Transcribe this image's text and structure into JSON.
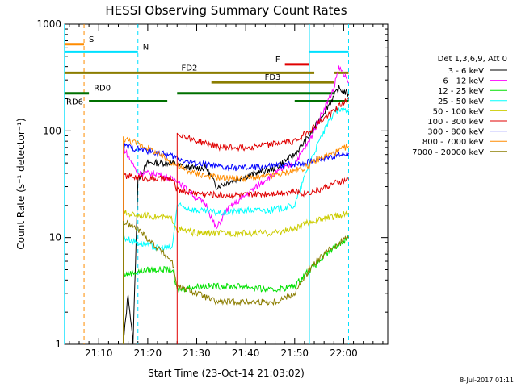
{
  "chart_data": {
    "type": "line",
    "title": "HESSI Observing Summary Count Rates",
    "xlabel": "Start Time (23-Oct-14 21:03:02)",
    "ylabel": "Count Rate (s⁻¹ detector⁻¹)",
    "yscale": "log",
    "ylim": [
      1,
      1000
    ],
    "xlim": [
      "21:03:02",
      "22:09:00"
    ],
    "x_ticks": [
      "21:10",
      "21:20",
      "21:30",
      "21:40",
      "21:50",
      "22:00"
    ],
    "y_ticks": [
      "1",
      "10",
      "100",
      "1000"
    ],
    "legend": {
      "position": "right",
      "title": "Det 1,3,6,9, Att 0"
    },
    "footer_date": "8-Jul-2017 01:11",
    "flags": [
      {
        "label": "S",
        "color": "#ff8c00",
        "t_start": "21:03",
        "t_end": "21:07",
        "level": 650
      },
      {
        "label": "N",
        "color": "#00e0ff",
        "t_start": "21:03",
        "t_end": "21:18",
        "level": 550
      },
      {
        "label": "",
        "color": "#00e0ff",
        "t_start": "21:53",
        "t_end": "22:01",
        "level": 550
      },
      {
        "label": "F",
        "color": "#e00000",
        "t_start": "21:48",
        "t_end": "21:53",
        "level": 420
      },
      {
        "label": "FD2",
        "color": "#8b7d00",
        "t_start": "21:03",
        "t_end": "21:54",
        "level": 350
      },
      {
        "label": "",
        "color": "#8b7d00",
        "t_start": "21:58",
        "t_end": "22:01",
        "level": 350
      },
      {
        "label": "FD3",
        "color": "#8b7d00",
        "t_start": "21:33",
        "t_end": "21:58",
        "level": 285
      },
      {
        "label": "RD0",
        "color": "#007000",
        "t_start": "21:03",
        "t_end": "21:08",
        "level": 225
      },
      {
        "label": "",
        "color": "#007000",
        "t_start": "21:26",
        "t_end": "21:58",
        "level": 225
      },
      {
        "label": "RD6",
        "color": "#007000",
        "t_start": "21:08",
        "t_end": "21:24",
        "level": 190
      },
      {
        "label": "",
        "color": "#007000",
        "t_start": "21:50",
        "t_end": "22:01",
        "level": 190
      }
    ],
    "vlines": [
      {
        "time": "21:03",
        "color": "#00e0ff"
      },
      {
        "time": "21:07",
        "color": "#ff8c00",
        "dashed": true
      },
      {
        "time": "21:18",
        "color": "#00e0ff",
        "dashed": true
      },
      {
        "time": "21:53",
        "color": "#00e0ff"
      },
      {
        "time": "22:01",
        "color": "#00e0ff",
        "dashed": true
      }
    ],
    "series": [
      {
        "name": "3 - 6 keV",
        "color": "#000000",
        "points": [
          [
            "21:15",
            1
          ],
          [
            "21:16",
            3
          ],
          [
            "21:17",
            1
          ],
          [
            "21:18",
            35
          ],
          [
            "21:20",
            50
          ],
          [
            "21:25",
            50
          ],
          [
            "21:28",
            45
          ],
          [
            "21:32",
            45
          ],
          [
            "21:34",
            30
          ],
          [
            "21:38",
            35
          ],
          [
            "21:42",
            40
          ],
          [
            "21:46",
            45
          ],
          [
            "21:50",
            60
          ],
          [
            "21:53",
            90
          ],
          [
            "21:56",
            150
          ],
          [
            "21:59",
            250
          ],
          [
            "22:01",
            220
          ]
        ]
      },
      {
        "name": "6 - 12 keV",
        "color": "#ff00ff",
        "points": [
          [
            "21:15",
            70
          ],
          [
            "21:18",
            40
          ],
          [
            "21:22",
            40
          ],
          [
            "21:25",
            35
          ],
          [
            "21:26",
            35
          ],
          [
            "21:28",
            28
          ],
          [
            "21:32",
            20
          ],
          [
            "21:34",
            12
          ],
          [
            "21:36",
            18
          ],
          [
            "21:40",
            25
          ],
          [
            "21:44",
            35
          ],
          [
            "21:48",
            45
          ],
          [
            "21:50",
            50
          ],
          [
            "21:53",
            80
          ],
          [
            "21:55",
            130
          ],
          [
            "21:58",
            250
          ],
          [
            "21:59",
            400
          ],
          [
            "22:01",
            280
          ]
        ]
      },
      {
        "name": "12 - 25 keV",
        "color": "#00e000",
        "points": [
          [
            "21:15",
            4.5
          ],
          [
            "21:20",
            5
          ],
          [
            "21:25",
            5
          ],
          [
            "21:26",
            3.2
          ],
          [
            "21:30",
            3.5
          ],
          [
            "21:35",
            3.5
          ],
          [
            "21:40",
            3.5
          ],
          [
            "21:45",
            3.2
          ],
          [
            "21:50",
            3.5
          ],
          [
            "21:52",
            4.5
          ],
          [
            "21:55",
            6
          ],
          [
            "21:58",
            8
          ],
          [
            "22:01",
            10
          ]
        ]
      },
      {
        "name": "25 - 50 keV",
        "color": "#00ffff",
        "points": [
          [
            "21:15",
            10
          ],
          [
            "21:18",
            9
          ],
          [
            "21:22",
            8
          ],
          [
            "21:25",
            8
          ],
          [
            "21:26",
            20
          ],
          [
            "21:30",
            18
          ],
          [
            "21:35",
            17
          ],
          [
            "21:40",
            18
          ],
          [
            "21:45",
            18
          ],
          [
            "21:50",
            20
          ],
          [
            "21:53",
            50
          ],
          [
            "21:55",
            80
          ],
          [
            "21:58",
            150
          ],
          [
            "22:01",
            160
          ]
        ]
      },
      {
        "name": "50 - 100 keV",
        "color": "#cccc00",
        "points": [
          [
            "21:15",
            17
          ],
          [
            "21:20",
            16
          ],
          [
            "21:25",
            15
          ],
          [
            "21:26",
            12
          ],
          [
            "21:30",
            11
          ],
          [
            "21:35",
            11
          ],
          [
            "21:40",
            11
          ],
          [
            "21:45",
            11
          ],
          [
            "21:50",
            12
          ],
          [
            "21:53",
            14
          ],
          [
            "21:56",
            15
          ],
          [
            "21:59",
            16
          ],
          [
            "22:01",
            17
          ]
        ]
      },
      {
        "name": "100 - 300 keV",
        "color": "#e00000",
        "points": [
          [
            "21:15",
            38
          ],
          [
            "21:20",
            36
          ],
          [
            "21:25",
            35
          ],
          [
            "21:26",
            28
          ],
          [
            "21:30",
            26
          ],
          [
            "21:35",
            25
          ],
          [
            "21:40",
            25
          ],
          [
            "21:45",
            26
          ],
          [
            "21:50",
            27
          ],
          [
            "21:52",
            26
          ],
          [
            "21:55",
            28
          ],
          [
            "21:58",
            32
          ],
          [
            "22:01",
            35
          ]
        ]
      },
      {
        "name": "300 - 800 keV",
        "color": "#0000ff",
        "points": [
          [
            "21:15",
            72
          ],
          [
            "21:20",
            65
          ],
          [
            "21:25",
            58
          ],
          [
            "21:28",
            52
          ],
          [
            "21:32",
            48
          ],
          [
            "21:36",
            45
          ],
          [
            "21:40",
            45
          ],
          [
            "21:44",
            46
          ],
          [
            "21:48",
            48
          ],
          [
            "21:52",
            50
          ],
          [
            "21:55",
            55
          ],
          [
            "21:58",
            58
          ],
          [
            "22:01",
            62
          ]
        ]
      },
      {
        "name": "800 - 7000 keV",
        "color": "#ff8c00",
        "points": [
          [
            "21:15",
            85
          ],
          [
            "21:20",
            70
          ],
          [
            "21:25",
            50
          ],
          [
            "21:28",
            42
          ],
          [
            "21:32",
            38
          ],
          [
            "21:36",
            36
          ],
          [
            "21:40",
            36
          ],
          [
            "21:44",
            37
          ],
          [
            "21:48",
            40
          ],
          [
            "21:52",
            45
          ],
          [
            "21:55",
            55
          ],
          [
            "21:58",
            62
          ],
          [
            "22:01",
            72
          ]
        ]
      },
      {
        "name": "7000 - 20000 keV",
        "color": "#8b7d00",
        "points": [
          [
            "21:15",
            14
          ],
          [
            "21:18",
            12
          ],
          [
            "21:22",
            8
          ],
          [
            "21:25",
            6
          ],
          [
            "21:26",
            3.5
          ],
          [
            "21:30",
            3
          ],
          [
            "21:34",
            2.5
          ],
          [
            "21:38",
            2.5
          ],
          [
            "21:42",
            2.5
          ],
          [
            "21:46",
            2.5
          ],
          [
            "21:50",
            3
          ],
          [
            "21:53",
            5
          ],
          [
            "21:56",
            7
          ],
          [
            "21:59",
            9
          ],
          [
            "22:01",
            10
          ]
        ]
      },
      {
        "name": "",
        "color": "#e00000",
        "points": [
          [
            "21:26",
            95
          ],
          [
            "21:30",
            80
          ],
          [
            "21:35",
            70
          ],
          [
            "21:40",
            70
          ],
          [
            "21:45",
            75
          ],
          [
            "21:50",
            80
          ],
          [
            "21:53",
            100
          ],
          [
            "21:56",
            130
          ],
          [
            "21:59",
            170
          ],
          [
            "22:01",
            200
          ]
        ]
      }
    ]
  }
}
